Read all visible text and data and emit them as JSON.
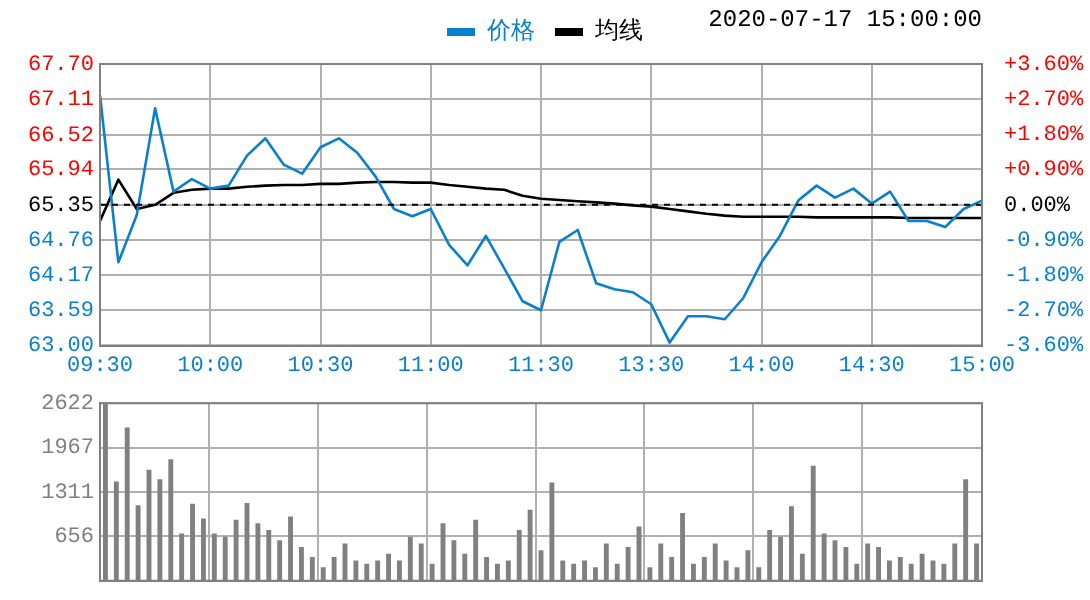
{
  "chart_data": [
    {
      "type": "line",
      "annotations": [
        "2020-07-17 15:00:00"
      ],
      "categories": [
        "09:30",
        null,
        null,
        null,
        null,
        null,
        "10:00",
        null,
        null,
        null,
        null,
        null,
        "10:30",
        null,
        null,
        null,
        null,
        null,
        "11:00",
        null,
        null,
        null,
        null,
        null,
        "11:30",
        null,
        null,
        null,
        null,
        null,
        "13:30",
        null,
        null,
        null,
        null,
        null,
        "14:00",
        null,
        null,
        null,
        null,
        null,
        "14:30",
        null,
        null,
        null,
        null,
        null,
        "15:00"
      ],
      "series": [
        {
          "name": "价格",
          "color": "#0a7fcc",
          "values": [
            67.18,
            64.39,
            65.18,
            66.96,
            65.57,
            65.78,
            65.62,
            65.67,
            66.17,
            66.46,
            66.02,
            65.87,
            66.31,
            66.46,
            66.22,
            65.82,
            65.28,
            65.16,
            65.28,
            64.68,
            64.34,
            64.83,
            64.29,
            63.74,
            63.59,
            64.73,
            64.93,
            64.04,
            63.94,
            63.89,
            63.69,
            63.05,
            63.49,
            63.49,
            63.44,
            63.79,
            64.39,
            64.83,
            65.42,
            65.67,
            65.47,
            65.62,
            65.37,
            65.57,
            65.08,
            65.08,
            64.98,
            65.28,
            65.42
          ]
        },
        {
          "name": "均线",
          "color": "#000000",
          "values": [
            65.08,
            65.77,
            65.28,
            65.35,
            65.55,
            65.6,
            65.62,
            65.62,
            65.65,
            65.67,
            65.68,
            65.68,
            65.7,
            65.7,
            65.72,
            65.73,
            65.73,
            65.72,
            65.72,
            65.68,
            65.65,
            65.62,
            65.6,
            65.5,
            65.45,
            65.43,
            65.41,
            65.39,
            65.37,
            65.34,
            65.32,
            65.28,
            65.24,
            65.2,
            65.17,
            65.15,
            65.15,
            65.15,
            65.15,
            65.14,
            65.14,
            65.14,
            65.14,
            65.14,
            65.13,
            65.13,
            65.13,
            65.13,
            65.13
          ]
        }
      ],
      "ylim": [
        63.0,
        67.7
      ],
      "yticks": [
        {
          "value": 63.0,
          "label": "63.00"
        },
        {
          "value": 63.59,
          "label": "63.59"
        },
        {
          "value": 64.17,
          "label": "64.17"
        },
        {
          "value": 64.76,
          "label": "64.76"
        },
        {
          "value": 65.35,
          "label": "65.35"
        },
        {
          "value": 65.94,
          "label": "65.94"
        },
        {
          "value": 66.52,
          "label": "66.52"
        },
        {
          "value": 67.11,
          "label": "67.11"
        },
        {
          "value": 67.7,
          "label": "67.70"
        }
      ],
      "y2lim": [
        -3.6,
        3.6
      ],
      "y2ticks": [
        {
          "value": -3.6,
          "label": "-3.60%"
        },
        {
          "value": -2.7,
          "label": "-2.70%"
        },
        {
          "value": -1.8,
          "label": "-1.80%"
        },
        {
          "value": -0.9,
          "label": "-0.90%"
        },
        {
          "value": 0,
          "label": "0.00%"
        },
        {
          "value": 0.9,
          "label": "+0.90%"
        },
        {
          "value": 1.8,
          "label": "+1.80%"
        },
        {
          "value": 2.7,
          "label": "+2.70%"
        },
        {
          "value": 3.6,
          "label": "+3.60%"
        }
      ],
      "ref_lines": [
        {
          "axis": "y",
          "value": 65.35,
          "color": "#000000",
          "line_style": "dashed"
        }
      ],
      "grid": true,
      "legend": "top",
      "marker": "none",
      "line_style": "solid"
    },
    {
      "type": "bar",
      "tick_labels": "y",
      "categories": [
        null,
        null,
        null,
        null,
        null,
        null,
        null,
        null,
        null,
        null,
        null,
        null,
        null,
        null,
        null,
        null,
        null,
        null,
        null,
        null,
        null,
        null,
        null,
        null,
        null,
        null,
        null,
        null,
        null,
        null,
        null,
        null,
        null,
        null,
        null,
        null,
        null,
        null,
        null,
        null,
        null,
        null,
        null,
        null,
        null,
        null,
        null,
        null,
        null,
        null,
        null,
        null,
        null,
        null,
        null,
        null,
        null,
        null,
        null,
        null,
        null,
        null,
        null,
        null,
        null,
        null,
        null,
        null,
        null,
        null,
        null,
        null,
        null,
        null,
        null,
        null,
        null,
        null,
        null,
        null,
        null
      ],
      "values": [
        2622,
        1465,
        2262,
        1115,
        1640,
        1500,
        1793,
        700,
        1137,
        918,
        700,
        650,
        900,
        1150,
        850,
        750,
        600,
        950,
        500,
        350,
        200,
        350,
        550,
        300,
        250,
        300,
        400,
        300,
        650,
        550,
        250,
        850,
        600,
        400,
        900,
        350,
        250,
        300,
        750,
        1050,
        450,
        1450,
        300,
        250,
        300,
        200,
        550,
        250,
        500,
        800,
        200,
        550,
        350,
        1000,
        250,
        350,
        550,
        300,
        200,
        450,
        200,
        750,
        650,
        1100,
        400,
        1700,
        700,
        600,
        500,
        250,
        550,
        500,
        300,
        350,
        250,
        400,
        300,
        250,
        550,
        1500,
        550
      ],
      "color": "#808080",
      "ylim": [
        0,
        2622
      ],
      "yticks": [
        656,
        1311,
        1967,
        2622
      ],
      "grid": true
    }
  ]
}
